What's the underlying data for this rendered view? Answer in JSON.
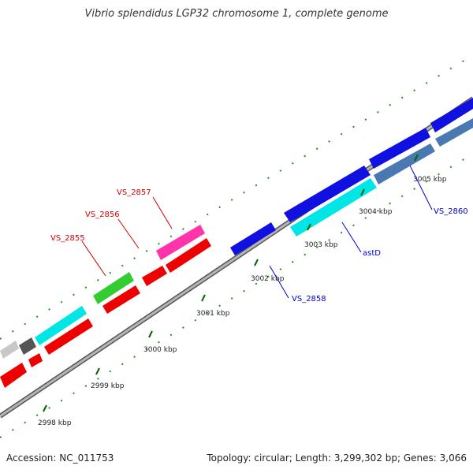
{
  "title": "Vibrio splendidus LGP32 chromosome 1, complete genome",
  "footer": {
    "accession": "Accession: NC_011753",
    "summary": "Topology: circular; Length: 3,299,302 bp; Genes: 3,066"
  },
  "ticks": [
    "2998 kbp",
    "2999 kbp",
    "3000 kbp",
    "3001 kbp",
    "3002 kbp",
    "3003 kbp",
    "3004 kbp",
    "3005 kbp"
  ],
  "gene_labels": {
    "vs2855": "VS_2855",
    "vs2856": "VS_2856",
    "vs2857": "VS_2857",
    "vs2858": "VS_2858",
    "astd": "astD",
    "vs2860": "VS_2860"
  },
  "colors": {
    "red_label": "#dd0000",
    "blue_label": "#0000cc",
    "axis_tick": "#006600"
  }
}
